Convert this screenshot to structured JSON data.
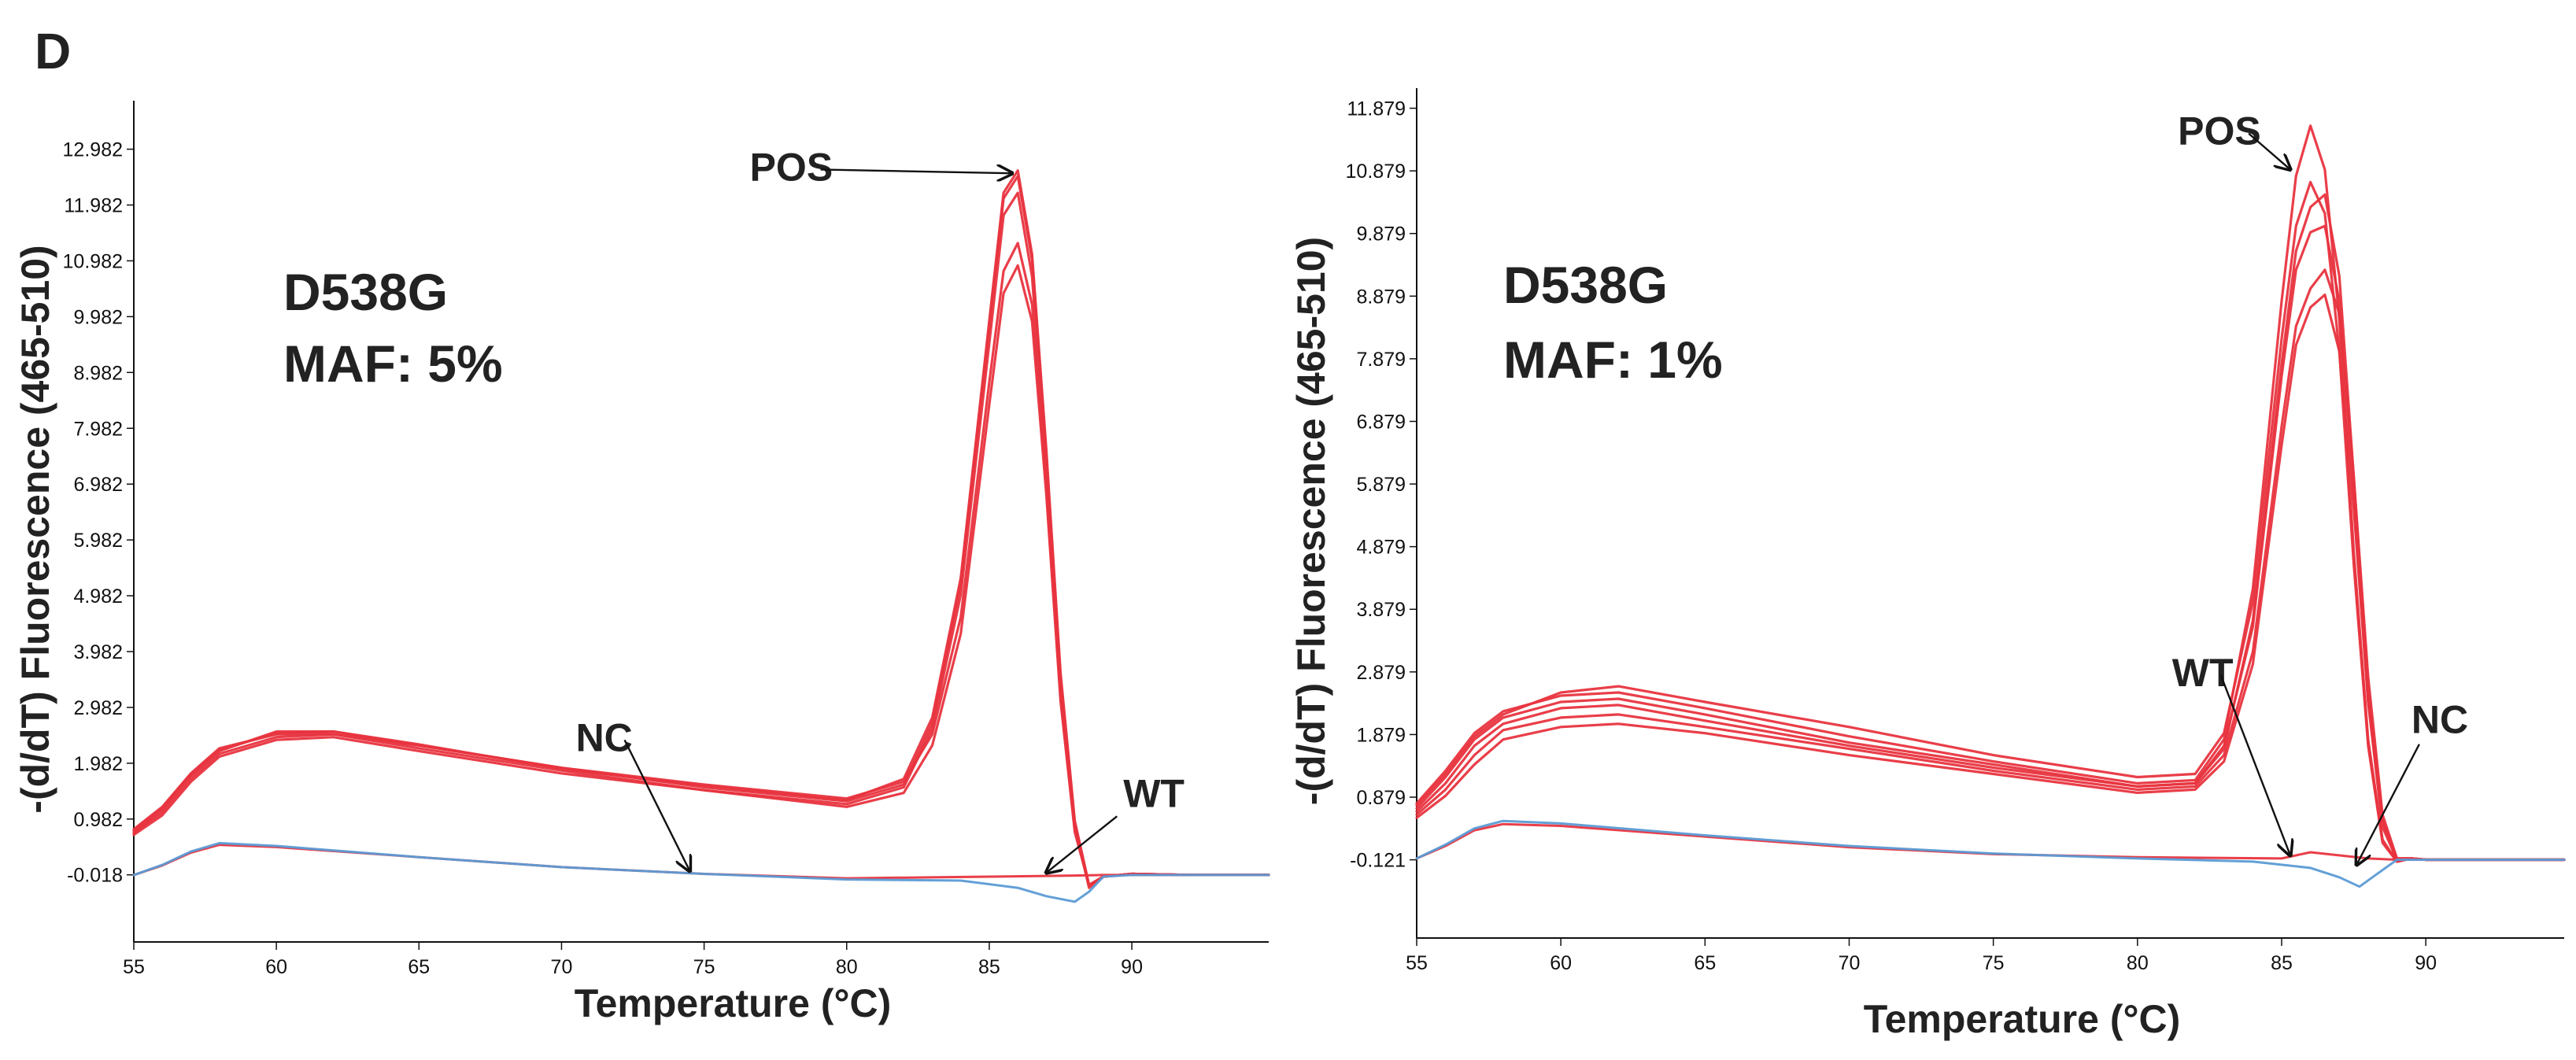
{
  "panel_letter": "D",
  "colors": {
    "positive": "#e8343f",
    "negative": "#5b9bd5",
    "axis": "#111111",
    "text": "#222222"
  },
  "chart_data": [
    {
      "type": "line",
      "title": "D538G",
      "subtitle": "MAF: 5%",
      "xlabel": "Temperature (°C)",
      "ylabel": "-(d/dT) Fluorescence (465-510)",
      "xlim": [
        55,
        94.8
      ],
      "ylim": [
        -1.22,
        13.85
      ],
      "xticks": [
        55,
        60,
        65,
        70,
        75,
        80,
        85,
        90
      ],
      "yticks": [
        "-0.018",
        "0.982",
        "1.982",
        "2.982",
        "3.982",
        "4.982",
        "5.982",
        "6.982",
        "7.982",
        "8.982",
        "9.982",
        "10.982",
        "11.982",
        "12.982"
      ],
      "annotations": [
        {
          "label": "POS",
          "tx": 76.6,
          "ty": 12.42,
          "ax": 85.8,
          "ay": 12.55
        },
        {
          "label": "NC",
          "tx": 70.5,
          "ty": 2.2,
          "ax": 74.5,
          "ay": 0.05
        },
        {
          "label": "WT",
          "tx": 89.7,
          "ty": 1.2,
          "ax": 87.0,
          "ay": 0.02
        }
      ],
      "series": [
        {
          "name": "POS",
          "color": "#e8343f",
          "x": [
            55,
            56,
            57,
            58,
            60,
            62,
            65,
            70,
            75,
            80,
            82,
            83,
            84,
            85,
            85.5,
            86,
            86.5,
            87,
            87.5,
            88,
            88.5,
            89,
            90,
            92,
            94.8
          ],
          "y": [
            0.72,
            1.15,
            1.75,
            2.2,
            2.55,
            2.55,
            2.3,
            1.9,
            1.55,
            1.3,
            1.6,
            2.7,
            5.2,
            9.8,
            12.1,
            12.5,
            11.0,
            7.5,
            3.5,
            0.9,
            -0.2,
            -0.05,
            0.0,
            -0.02,
            -0.02
          ]
        },
        {
          "name": "POS",
          "color": "#e8343f",
          "x": [
            55,
            56,
            57,
            58,
            60,
            62,
            65,
            70,
            75,
            80,
            82,
            83,
            84,
            85,
            85.5,
            86,
            86.5,
            87,
            87.5,
            88,
            88.5,
            89,
            90,
            92,
            94.8
          ],
          "y": [
            0.8,
            1.2,
            1.8,
            2.25,
            2.5,
            2.5,
            2.25,
            1.85,
            1.5,
            1.25,
            1.55,
            2.6,
            5.0,
            9.5,
            11.8,
            12.2,
            10.7,
            7.3,
            3.4,
            0.85,
            -0.25,
            -0.05,
            0.0,
            -0.02,
            -0.02
          ]
        },
        {
          "name": "POS",
          "color": "#e8343f",
          "x": [
            55,
            56,
            57,
            58,
            60,
            62,
            65,
            70,
            75,
            80,
            82,
            83,
            84,
            85,
            85.5,
            86,
            86.5,
            87,
            87.5,
            88,
            88.5,
            89,
            90,
            92,
            94.8
          ],
          "y": [
            0.75,
            1.1,
            1.7,
            2.15,
            2.45,
            2.5,
            2.3,
            1.9,
            1.6,
            1.35,
            1.65,
            2.5,
            4.6,
            8.8,
            10.8,
            11.3,
            10.2,
            7.0,
            3.2,
            0.8,
            -0.2,
            -0.05,
            0.0,
            -0.02,
            -0.02
          ]
        },
        {
          "name": "POS",
          "color": "#e8343f",
          "x": [
            55,
            56,
            57,
            58,
            60,
            62,
            65,
            70,
            75,
            80,
            82,
            83,
            84,
            85,
            85.5,
            86,
            86.5,
            87,
            87.5,
            88,
            88.5,
            89,
            90,
            92,
            94.8
          ],
          "y": [
            0.7,
            1.05,
            1.65,
            2.1,
            2.4,
            2.45,
            2.2,
            1.8,
            1.5,
            1.2,
            1.45,
            2.3,
            4.3,
            8.4,
            10.4,
            10.9,
            9.9,
            6.8,
            3.1,
            0.75,
            -0.2,
            -0.05,
            0.0,
            -0.02,
            -0.02
          ]
        },
        {
          "name": "POS",
          "color": "#e8343f",
          "x": [
            55,
            56,
            57,
            58,
            60,
            62,
            65,
            70,
            75,
            80,
            82,
            83,
            84,
            85,
            85.5,
            86,
            86.5,
            87,
            87.5,
            88,
            88.5,
            89,
            90,
            92,
            94.8
          ],
          "y": [
            0.78,
            1.18,
            1.78,
            2.22,
            2.52,
            2.55,
            2.32,
            1.88,
            1.58,
            1.32,
            1.7,
            2.8,
            5.3,
            9.9,
            12.2,
            12.6,
            11.1,
            7.6,
            3.6,
            0.95,
            -0.2,
            -0.05,
            0.0,
            -0.02,
            -0.02
          ]
        },
        {
          "name": "NC",
          "color": "#e8343f",
          "x": [
            55,
            56,
            57,
            58,
            60,
            65,
            70,
            75,
            80,
            85,
            88,
            89,
            90,
            94.8
          ],
          "y": [
            -0.02,
            0.15,
            0.38,
            0.52,
            0.48,
            0.3,
            0.12,
            0.0,
            -0.08,
            -0.05,
            -0.03,
            -0.02,
            -0.02,
            -0.02
          ]
        },
        {
          "name": "WT",
          "color": "#5b9bd5",
          "x": [
            55,
            56,
            57,
            58,
            60,
            65,
            70,
            75,
            80,
            84,
            86,
            87,
            88,
            88.5,
            89,
            90,
            94.8
          ],
          "y": [
            -0.02,
            0.16,
            0.4,
            0.55,
            0.5,
            0.3,
            0.12,
            0.0,
            -0.1,
            -0.12,
            -0.25,
            -0.4,
            -0.5,
            -0.32,
            -0.05,
            -0.02,
            -0.02
          ]
        }
      ]
    },
    {
      "type": "line",
      "title": "D538G",
      "subtitle": "MAF: 1%",
      "xlabel": "Temperature (°C)",
      "ylabel": "-(d/dT) Fluorescence (465-510)",
      "xlim": [
        55,
        94.8
      ],
      "ylim": [
        -1.37,
        12.2
      ],
      "xticks": [
        55,
        60,
        65,
        70,
        75,
        80,
        85,
        90
      ],
      "yticks": [
        "-0.121",
        "0.879",
        "1.879",
        "2.879",
        "3.879",
        "4.879",
        "5.879",
        "6.879",
        "7.879",
        "8.879",
        "9.879",
        "10.879",
        "11.879"
      ],
      "annotations": [
        {
          "label": "POS",
          "tx": 81.4,
          "ty": 11.3,
          "ax": 85.3,
          "ay": 10.9
        },
        {
          "label": "WT",
          "tx": 81.2,
          "ty": 2.65,
          "ax": 85.3,
          "ay": -0.05
        },
        {
          "label": "NC",
          "tx": 89.5,
          "ty": 1.9,
          "ax": 87.6,
          "ay": -0.2
        }
      ],
      "series": [
        {
          "name": "POS",
          "color": "#e8343f",
          "x": [
            55,
            56,
            57,
            58,
            60,
            62,
            65,
            70,
            75,
            80,
            82,
            83,
            84,
            85,
            85.5,
            86,
            86.5,
            87,
            87.5,
            88,
            88.5,
            89,
            89.5,
            90,
            92,
            94.8
          ],
          "y": [
            0.78,
            1.3,
            1.9,
            2.25,
            2.5,
            2.55,
            2.3,
            1.85,
            1.45,
            1.1,
            1.15,
            1.8,
            4.2,
            8.8,
            10.8,
            11.6,
            10.9,
            8.5,
            4.8,
            1.8,
            0.2,
            -0.15,
            -0.1,
            -0.12,
            -0.12,
            -0.12
          ]
        },
        {
          "name": "POS",
          "color": "#e8343f",
          "x": [
            55,
            56,
            57,
            58,
            60,
            62,
            65,
            70,
            75,
            80,
            82,
            83,
            84,
            85,
            85.5,
            86,
            86.5,
            87,
            87.5,
            88,
            88.5,
            89,
            89.5,
            90,
            92,
            94.8
          ],
          "y": [
            0.7,
            1.2,
            1.8,
            2.15,
            2.4,
            2.45,
            2.2,
            1.75,
            1.4,
            1.05,
            1.1,
            1.65,
            3.7,
            7.8,
            9.6,
            10.3,
            10.5,
            9.2,
            6.0,
            2.6,
            0.5,
            -0.15,
            -0.1,
            -0.12,
            -0.12,
            -0.12
          ]
        },
        {
          "name": "POS",
          "color": "#e8343f",
          "x": [
            55,
            56,
            57,
            58,
            60,
            62,
            65,
            70,
            75,
            80,
            82,
            83,
            84,
            85,
            85.5,
            86,
            86.5,
            87,
            87.5,
            88,
            88.5,
            89,
            89.5,
            90,
            92,
            94.8
          ],
          "y": [
            0.6,
            1.0,
            1.55,
            1.95,
            2.15,
            2.2,
            2.0,
            1.65,
            1.3,
            1.0,
            1.05,
            1.55,
            3.2,
            6.8,
            8.4,
            9.0,
            9.3,
            8.6,
            6.0,
            2.8,
            0.6,
            -0.1,
            -0.1,
            -0.12,
            -0.12,
            -0.12
          ]
        },
        {
          "name": "POS",
          "color": "#e8343f",
          "x": [
            55,
            56,
            57,
            58,
            60,
            62,
            65,
            70,
            75,
            80,
            82,
            83,
            84,
            85,
            85.5,
            86,
            86.5,
            87,
            87.5,
            88,
            88.5,
            89,
            89.5,
            90,
            92,
            94.8
          ],
          "y": [
            0.55,
            0.9,
            1.4,
            1.8,
            2.0,
            2.05,
            1.9,
            1.55,
            1.25,
            0.95,
            1.0,
            1.45,
            3.0,
            6.5,
            8.1,
            8.7,
            8.9,
            8.0,
            5.5,
            2.4,
            0.5,
            -0.1,
            -0.1,
            -0.12,
            -0.12,
            -0.12
          ]
        },
        {
          "name": "POS",
          "color": "#e8343f",
          "x": [
            55,
            56,
            57,
            58,
            60,
            62,
            65,
            70,
            75,
            80,
            82,
            83,
            84,
            85,
            85.5,
            86,
            86.5,
            87,
            87.5,
            88,
            88.5,
            89,
            89.5,
            90,
            92,
            94.8
          ],
          "y": [
            0.75,
            1.25,
            1.85,
            2.2,
            2.55,
            2.65,
            2.4,
            2.0,
            1.55,
            1.2,
            1.25,
            1.9,
            4.0,
            8.2,
            10.0,
            10.7,
            10.2,
            8.0,
            4.6,
            1.7,
            0.15,
            -0.15,
            -0.1,
            -0.12,
            -0.12,
            -0.12
          ]
        },
        {
          "name": "POS",
          "color": "#e8343f",
          "x": [
            55,
            56,
            57,
            58,
            60,
            62,
            65,
            70,
            75,
            80,
            82,
            83,
            84,
            85,
            85.5,
            86,
            86.5,
            87,
            87.5,
            88,
            88.5,
            89,
            89.5,
            90,
            92,
            94.8
          ],
          "y": [
            0.65,
            1.1,
            1.7,
            2.05,
            2.3,
            2.35,
            2.1,
            1.7,
            1.35,
            1.05,
            1.1,
            1.7,
            3.6,
            7.6,
            9.3,
            9.9,
            10.0,
            8.8,
            5.7,
            2.4,
            0.4,
            -0.12,
            -0.1,
            -0.12,
            -0.12,
            -0.12
          ]
        },
        {
          "name": "NC",
          "color": "#e8343f",
          "x": [
            55,
            56,
            57,
            58,
            60,
            65,
            70,
            75,
            80,
            85,
            86,
            88,
            89,
            90,
            94.8
          ],
          "y": [
            -0.1,
            0.1,
            0.35,
            0.45,
            0.42,
            0.25,
            0.08,
            -0.03,
            -0.08,
            -0.1,
            0.0,
            -0.1,
            -0.12,
            -0.12,
            -0.12
          ]
        },
        {
          "name": "WT",
          "color": "#5b9bd5",
          "x": [
            55,
            56,
            57,
            58,
            60,
            65,
            70,
            75,
            80,
            84,
            86,
            87,
            87.7,
            88.3,
            89,
            90,
            94.8
          ],
          "y": [
            -0.1,
            0.12,
            0.38,
            0.5,
            0.46,
            0.27,
            0.1,
            -0.02,
            -0.1,
            -0.15,
            -0.25,
            -0.4,
            -0.55,
            -0.35,
            -0.12,
            -0.12,
            -0.12
          ]
        }
      ]
    }
  ]
}
